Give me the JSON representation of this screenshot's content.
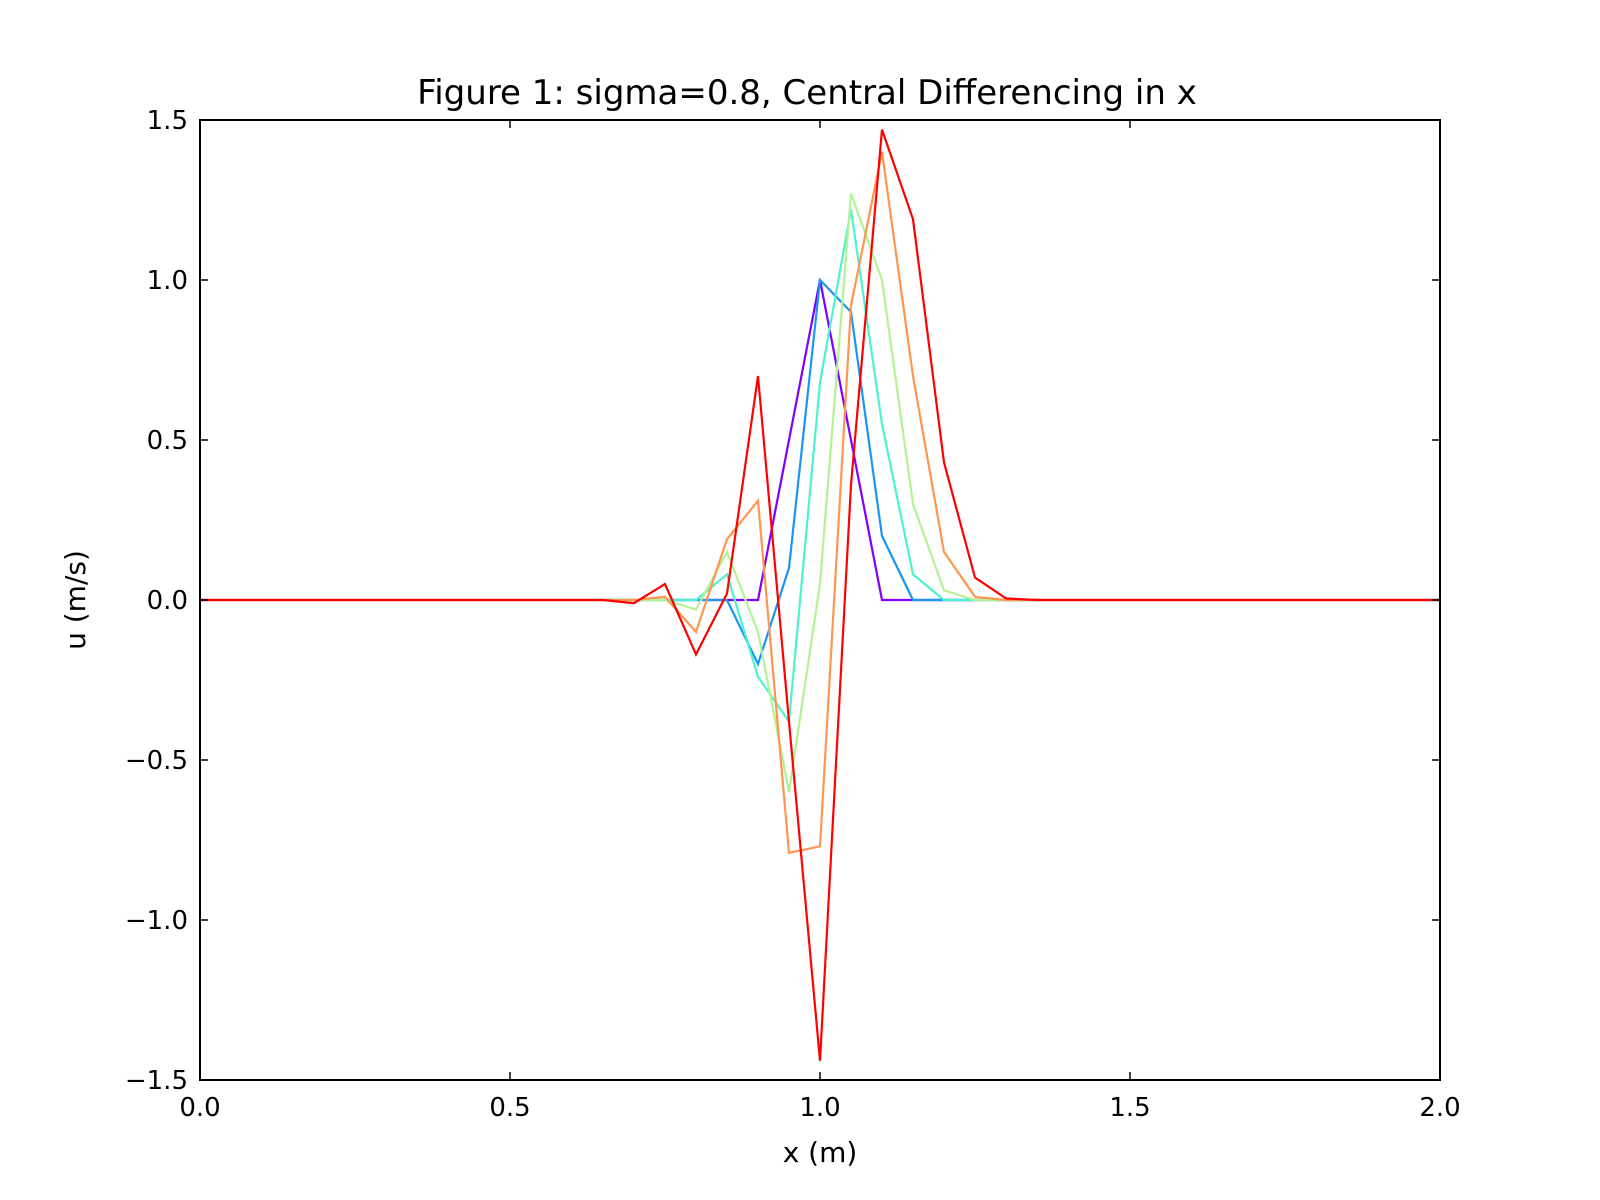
{
  "chart_data": {
    "type": "line",
    "title": "Figure 1: sigma=0.8, Central Differencing in x",
    "xlabel": "x (m)",
    "ylabel": "u (m/s)",
    "xlim": [
      0.0,
      2.0
    ],
    "ylim": [
      -1.5,
      1.5
    ],
    "grid": false,
    "x_ticks": [
      0.0,
      0.5,
      1.0,
      1.5,
      2.0
    ],
    "x_tick_labels": [
      "0.0",
      "0.5",
      "1.0",
      "1.5",
      "2.0"
    ],
    "y_ticks": [
      1.5,
      1.0,
      0.5,
      0.0,
      -0.5,
      -1.0,
      -1.5
    ],
    "y_tick_labels": [
      "1.5",
      "1.0",
      "0.5",
      "0.0",
      "−0.5",
      "−1.0",
      "−1.5"
    ],
    "x": [
      0.0,
      0.05,
      0.1,
      0.15,
      0.2,
      0.25,
      0.3,
      0.35,
      0.4,
      0.45,
      0.5,
      0.55,
      0.6,
      0.65,
      0.7,
      0.75,
      0.8,
      0.85,
      0.9,
      0.95,
      1.0,
      1.05,
      1.1,
      1.15,
      1.2,
      1.25,
      1.3,
      1.35,
      1.4,
      1.45,
      1.5,
      1.55,
      1.6,
      1.65,
      1.7,
      1.75,
      1.8,
      1.85,
      1.9,
      1.95,
      2.0
    ],
    "series": [
      {
        "color": "#8000ff",
        "values": [
          0,
          0,
          0,
          0,
          0,
          0,
          0,
          0,
          0,
          0,
          0,
          0,
          0,
          0,
          0,
          0,
          0,
          0,
          0,
          0.5,
          1.0,
          0.5,
          0,
          0,
          0,
          0,
          0,
          0,
          0,
          0,
          0,
          0,
          0,
          0,
          0,
          0,
          0,
          0,
          0,
          0,
          0
        ]
      },
      {
        "color": "#1996f3",
        "values": [
          0,
          0,
          0,
          0,
          0,
          0,
          0,
          0,
          0,
          0,
          0,
          0,
          0,
          0,
          0,
          0,
          0,
          0,
          -0.2,
          0.1,
          1.0,
          0.9,
          0.2,
          0,
          0,
          0,
          0,
          0,
          0,
          0,
          0,
          0,
          0,
          0,
          0,
          0,
          0,
          0,
          0,
          0,
          0
        ]
      },
      {
        "color": "#4df3ce",
        "values": [
          0,
          0,
          0,
          0,
          0,
          0,
          0,
          0,
          0,
          0,
          0,
          0,
          0,
          0,
          0,
          0,
          0,
          0.08,
          -0.24,
          -0.38,
          0.68,
          1.22,
          0.55,
          0.08,
          0.0,
          0,
          0,
          0,
          0,
          0,
          0,
          0,
          0,
          0,
          0,
          0,
          0,
          0,
          0,
          0,
          0
        ]
      },
      {
        "color": "#b3f396",
        "values": [
          0,
          0,
          0,
          0,
          0,
          0,
          0,
          0,
          0,
          0,
          0,
          0,
          0,
          0,
          0,
          0,
          -0.03,
          0.15,
          -0.1,
          -0.6,
          0.05,
          1.27,
          1.0,
          0.3,
          0.03,
          0.0,
          0,
          0,
          0,
          0,
          0,
          0,
          0,
          0,
          0,
          0,
          0,
          0,
          0,
          0,
          0
        ]
      },
      {
        "color": "#ff964f",
        "values": [
          0,
          0,
          0,
          0,
          0,
          0,
          0,
          0,
          0,
          0,
          0,
          0,
          0,
          0,
          0,
          0.01,
          -0.1,
          0.19,
          0.31,
          -0.79,
          -0.77,
          0.92,
          1.4,
          0.7,
          0.15,
          0.01,
          0.0,
          0,
          0,
          0,
          0,
          0,
          0,
          0,
          0,
          0,
          0,
          0,
          0,
          0,
          0
        ]
      },
      {
        "color": "#ff0000",
        "values": [
          0,
          0,
          0,
          0,
          0,
          0,
          0,
          0,
          0,
          0,
          0,
          0,
          0,
          0,
          -0.01,
          0.05,
          -0.17,
          0.02,
          0.7,
          -0.38,
          -1.44,
          0.36,
          1.47,
          1.19,
          0.43,
          0.07,
          0.005,
          0,
          0,
          0,
          0,
          0,
          0,
          0,
          0,
          0,
          0,
          0,
          0,
          0,
          0
        ]
      }
    ]
  }
}
